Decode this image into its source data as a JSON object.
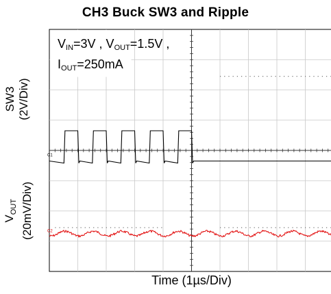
{
  "chart_data": {
    "type": "line",
    "title": "CH3 Buck SW3 and Ripple",
    "xlabel": "Time (1µs/Div)",
    "conditions": {
      "line1": {
        "p1": "V",
        "s1": "IN",
        "p2": "=3V , V",
        "s2": "OUT",
        "p3": "=1.5V ,"
      },
      "line2": {
        "p1": "I",
        "s1": "OUT",
        "p2": "=250mA"
      }
    },
    "channels": [
      {
        "ylabel_top": "SW3",
        "ylabel_bottom": "(2V/Div)",
        "color": "#000000",
        "marker": "C1",
        "unit_per_div": 2,
        "high_level_div": 0.8,
        "low_level_div": -0.2,
        "period_us": 1.0,
        "duty": 0.45,
        "rising_edges_div": [
          0.55,
          1.55,
          2.55,
          3.55,
          4.55
        ]
      },
      {
        "ylabel_top": "V",
        "ylabel_sub": "OUT",
        "ylabel_bottom": "(20mV/Div)",
        "color": "#e00000",
        "marker": "C2",
        "unit_per_div": 20,
        "offset_div": 0.1,
        "ripple_amplitude_div": 0.08,
        "period_us": 1.0
      }
    ],
    "x_divisions": 10,
    "y_divisions": 8,
    "grid": true
  }
}
